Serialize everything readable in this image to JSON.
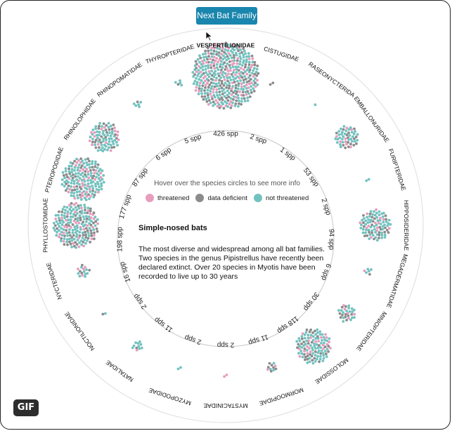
{
  "button": {
    "label": "Next Bat Family"
  },
  "badge": {
    "label": "GIF"
  },
  "hover_hint": "Hover over the species circles to see more info",
  "legend": [
    {
      "label": "threatened",
      "color": "#e79dbd"
    },
    {
      "label": "data deficient",
      "color": "#8b8b8b"
    },
    {
      "label": "not threatened",
      "color": "#72c2bf"
    }
  ],
  "info": {
    "title": "Simple-nosed bats",
    "description": "The most diverse and widespread among all bat families. Two species in the genus Pipistrellus have recently been declared extinct. Over 20 species in Myotis have been recorded to live up to 30 years"
  },
  "chart_data": {
    "type": "radial-beeswarm",
    "highlighted_family": "VESPERTILIONIDAE",
    "categories": [
      "threatened",
      "data deficient",
      "not threatened"
    ],
    "families": [
      {
        "name": "VESPERTILIONIDAE",
        "count_label": "426 spp",
        "species": 426
      },
      {
        "name": "CISTUGIDAE",
        "count_label": "2 spp",
        "species": 2
      },
      {
        "name": "RASEONYCTERIDA",
        "count_label": "1 spp",
        "species": 1
      },
      {
        "name": "EMBALLONURIDAE",
        "count_label": "53 spp",
        "species": 53
      },
      {
        "name": "FURIPTERIDAE",
        "count_label": "2 spp",
        "species": 2
      },
      {
        "name": "HIPPOSIDERIDAE",
        "count_label": "94 spp",
        "species": 94
      },
      {
        "name": "MEGADERMATIDAE",
        "count_label": "6 spp",
        "species": 6
      },
      {
        "name": "MINIOPTERIDAE",
        "count_label": "30 spp",
        "species": 30
      },
      {
        "name": "MOLOSSIDAE",
        "count_label": "118 spp",
        "species": 118
      },
      {
        "name": "MORMOOPIDAE",
        "count_label": "11 spp",
        "species": 11
      },
      {
        "name": "MYSTACINIDAE",
        "count_label": "2 spp",
        "species": 2
      },
      {
        "name": "MYZOPODIDAE",
        "count_label": "2 spp",
        "species": 2
      },
      {
        "name": "NATALIDAE",
        "count_label": "11 spp",
        "species": 11
      },
      {
        "name": "NOCTILIONIDAE",
        "count_label": "2 spp",
        "species": 2
      },
      {
        "name": "NYCTERIDAE",
        "count_label": "16 spp",
        "species": 16
      },
      {
        "name": "PHYLLOSTOMIDAE",
        "count_label": "198 spp",
        "species": 198
      },
      {
        "name": "PTEROPODIDAE",
        "count_label": "177 spp",
        "species": 177
      },
      {
        "name": "RHINOLOPHIDAE",
        "count_label": "87 spp",
        "species": 87
      },
      {
        "name": "RHINOPOMATIDAE",
        "count_label": "6 spp",
        "species": 6
      },
      {
        "name": "THYROPTERIDAE",
        "count_label": "5 spp",
        "species": 5
      }
    ]
  }
}
